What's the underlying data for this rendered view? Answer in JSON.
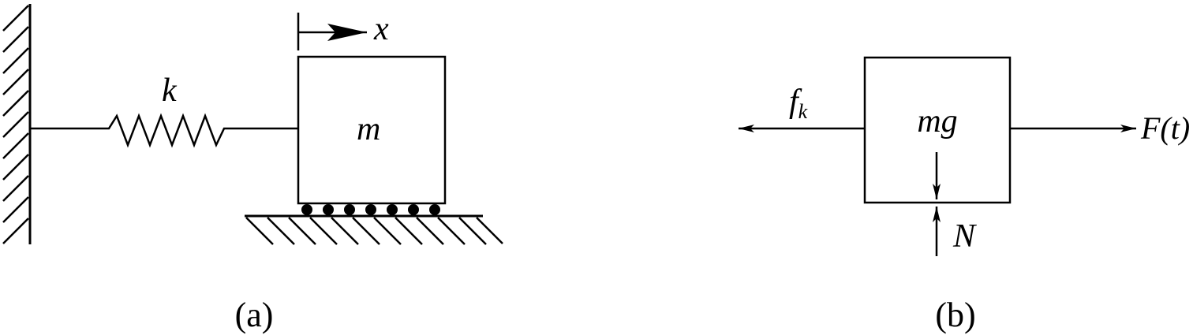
{
  "panel_a": {
    "spring_label": "k",
    "mass_label": "m",
    "displacement_label": "x",
    "caption": "(a)"
  },
  "panel_b": {
    "mass_label": "mg",
    "left_force_label": "f",
    "left_force_subscript": "k",
    "right_force_label": "F(t)",
    "normal_force_label": "N",
    "caption": "(b)"
  },
  "colors": {
    "ink": "#000000",
    "background": "#ffffff"
  }
}
